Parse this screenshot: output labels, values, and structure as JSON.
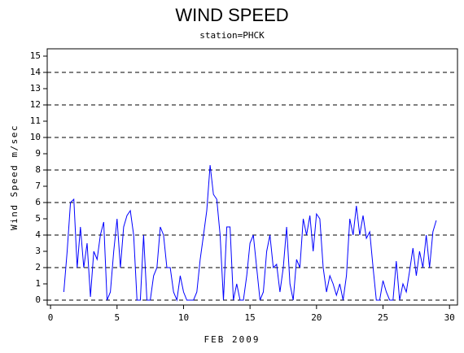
{
  "chart_data": {
    "type": "line",
    "title": "WIND SPEED",
    "subtitle": "station=PHCK",
    "xlabel": "FEB 2009",
    "ylabel": "Wind Speed m/sec",
    "xlim": [
      -0.25,
      30.6
    ],
    "xticks": [
      0,
      5,
      10,
      15,
      20,
      25,
      30
    ],
    "ylim": [
      -0.3,
      15.45
    ],
    "yticks": [
      0,
      1,
      2,
      3,
      4,
      5,
      6,
      7,
      8,
      9,
      10,
      11,
      12,
      13,
      14,
      15
    ],
    "grid_step": 2,
    "series": [
      {
        "color": "#0000ff",
        "x": [
          1.0,
          1.25,
          1.5,
          1.75,
          2.0,
          2.25,
          2.5,
          2.75,
          3.0,
          3.25,
          3.5,
          3.75,
          4.0,
          4.25,
          4.5,
          4.75,
          5.0,
          5.25,
          5.5,
          5.75,
          6.0,
          6.25,
          6.5,
          6.75,
          7.0,
          7.25,
          7.5,
          7.75,
          8.0,
          8.25,
          8.5,
          8.75,
          9.0,
          9.25,
          9.5,
          9.75,
          10.0,
          10.25,
          10.5,
          10.75,
          11.0,
          11.25,
          11.5,
          11.75,
          12.0,
          12.25,
          12.5,
          12.75,
          13.0,
          13.25,
          13.5,
          13.75,
          14.0,
          14.25,
          14.5,
          14.75,
          15.0,
          15.25,
          15.5,
          15.75,
          16.0,
          16.25,
          16.5,
          16.75,
          17.0,
          17.25,
          17.5,
          17.75,
          18.0,
          18.25,
          18.5,
          18.75,
          19.0,
          19.25,
          19.5,
          19.75,
          20.0,
          20.25,
          20.5,
          20.75,
          21.0,
          21.25,
          21.5,
          21.75,
          22.0,
          22.25,
          22.5,
          22.75,
          23.0,
          23.25,
          23.5,
          23.75,
          24.0,
          24.25,
          24.5,
          24.75,
          25.0,
          25.25,
          25.5,
          25.75,
          26.0,
          26.25,
          26.5,
          26.75,
          27.0,
          27.25,
          27.5,
          27.75,
          28.0,
          28.25,
          28.5,
          28.75,
          29.0
        ],
        "values": [
          0.5,
          3,
          6,
          6.2,
          2,
          4.5,
          2,
          3.5,
          0.2,
          3,
          2.5,
          4,
          4.8,
          0,
          0.5,
          3,
          5,
          2,
          4.5,
          5.2,
          5.5,
          4,
          0,
          0,
          4,
          0,
          0,
          1.5,
          2,
          4.5,
          4,
          2,
          2,
          0.5,
          0,
          1.5,
          0.5,
          0,
          0,
          0,
          0.5,
          2.5,
          4,
          5.5,
          8.3,
          6.5,
          6.2,
          4,
          0,
          4.5,
          4.5,
          0,
          1,
          0,
          0,
          1.5,
          3.5,
          4,
          2,
          0,
          0.5,
          3,
          4,
          2,
          2.2,
          0.5,
          2,
          4.5,
          1,
          0,
          2.5,
          2,
          5,
          4,
          5.2,
          3,
          5.3,
          5,
          2,
          0.5,
          1.5,
          1,
          0.3,
          1,
          0,
          1.5,
          5,
          4,
          5.8,
          4,
          5.2,
          3.8,
          4.2,
          2,
          0,
          0,
          1.2,
          0.5,
          0,
          0,
          2.4,
          0,
          1,
          0.5,
          1.8,
          3.2,
          1.5,
          3,
          2,
          4,
          2,
          4.2,
          4.9
        ]
      }
    ]
  }
}
